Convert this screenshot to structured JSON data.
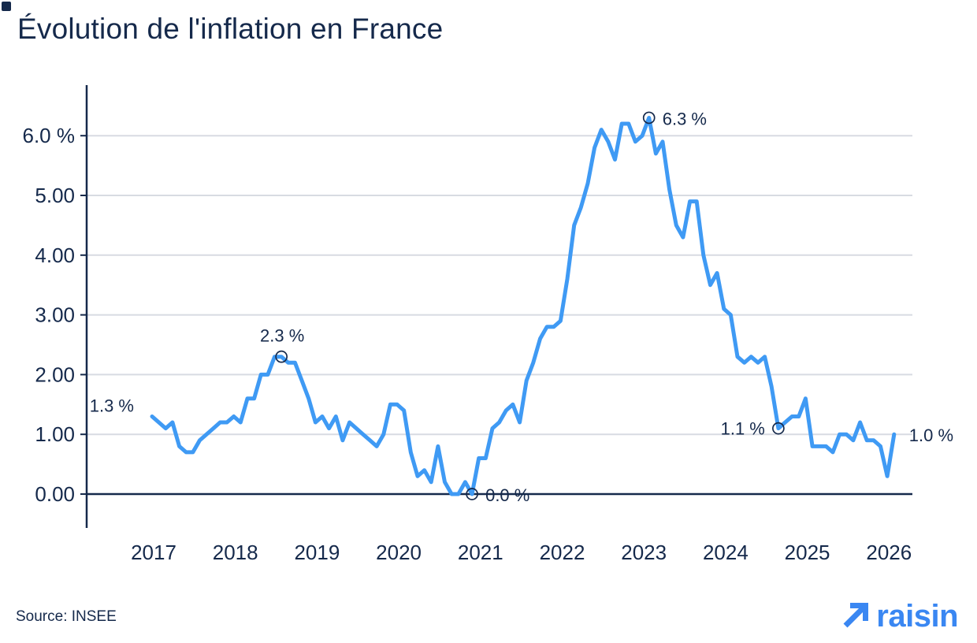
{
  "title": "Évolution de l'inflation en France",
  "source": "Source: INSEE",
  "logo": {
    "text": "raisin",
    "icon": "arrow-up-right-icon"
  },
  "colors": {
    "line": "#3F9AF4",
    "axis": "#15294B",
    "grid": "#D8DBE2",
    "text": "#15294B",
    "logo_blue": "#3A87F2",
    "background": "#FFFFFF"
  },
  "chart_data": {
    "type": "line",
    "title": "Évolution de l'inflation en France",
    "unit": "%",
    "frequency": "monthly",
    "x_start": {
      "year": 2017,
      "month": 1
    },
    "x_tick_labels": [
      "2017",
      "2018",
      "2019",
      "2020",
      "2021",
      "2022",
      "2023",
      "2024",
      "2025",
      "2026"
    ],
    "y_ticks": [
      {
        "label": "6.0 %",
        "value": 6
      },
      {
        "label": "5.00",
        "value": 5
      },
      {
        "label": "4.00",
        "value": 4
      },
      {
        "label": "3.00",
        "value": 3
      },
      {
        "label": "2.00",
        "value": 2
      },
      {
        "label": "1.00",
        "value": 1
      },
      {
        "label": "0.00",
        "value": 0
      }
    ],
    "ylim": [
      0,
      6.9
    ],
    "grid": "horizontal",
    "legend": "none",
    "series": [
      {
        "values": [
          1.3,
          1.2,
          1.1,
          1.2,
          0.8,
          0.7,
          0.7,
          0.9,
          1.0,
          1.1,
          1.2,
          1.2,
          1.3,
          1.2,
          1.6,
          1.6,
          2.0,
          2.0,
          2.3,
          2.3,
          2.2,
          2.2,
          1.9,
          1.6,
          1.2,
          1.3,
          1.1,
          1.3,
          0.9,
          1.2,
          1.1,
          1.0,
          0.9,
          0.8,
          1.0,
          1.5,
          1.5,
          1.4,
          0.7,
          0.3,
          0.4,
          0.2,
          0.8,
          0.2,
          0.0,
          0.0,
          0.2,
          0.0,
          0.6,
          0.6,
          1.1,
          1.2,
          1.4,
          1.5,
          1.2,
          1.9,
          2.2,
          2.6,
          2.8,
          2.8,
          2.9,
          3.6,
          4.5,
          4.8,
          5.2,
          5.8,
          6.1,
          5.9,
          5.6,
          6.2,
          6.2,
          5.9,
          6.0,
          6.3,
          5.7,
          5.9,
          5.1,
          4.5,
          4.3,
          4.9,
          4.9,
          4.0,
          3.5,
          3.7,
          3.1,
          3.0,
          2.3,
          2.2,
          2.3,
          2.2,
          2.3,
          1.8,
          1.1,
          1.2,
          1.3,
          1.3,
          1.6,
          0.8,
          0.8,
          0.8,
          0.7,
          1.0,
          1.0,
          0.9,
          1.2,
          0.9,
          0.9,
          0.8,
          0.3,
          1.0
        ]
      }
    ],
    "annotations": [
      {
        "label": "1.3 %",
        "index": 0,
        "value": 1.3,
        "placement": "left-start",
        "circle": false
      },
      {
        "label": "2.3 %",
        "index": 19,
        "value": 2.3,
        "placement": "above",
        "circle": true
      },
      {
        "label": "0.0 %",
        "index": 47,
        "value": 0.0,
        "placement": "right",
        "circle": true
      },
      {
        "label": "6.3 %",
        "index": 73,
        "value": 6.3,
        "placement": "right",
        "circle": true
      },
      {
        "label": "1.1 %",
        "index": 92,
        "value": 1.1,
        "placement": "left",
        "circle": true
      },
      {
        "label": "1.0 %",
        "index": 109,
        "value": 1.0,
        "placement": "right-end",
        "circle": false
      }
    ]
  }
}
